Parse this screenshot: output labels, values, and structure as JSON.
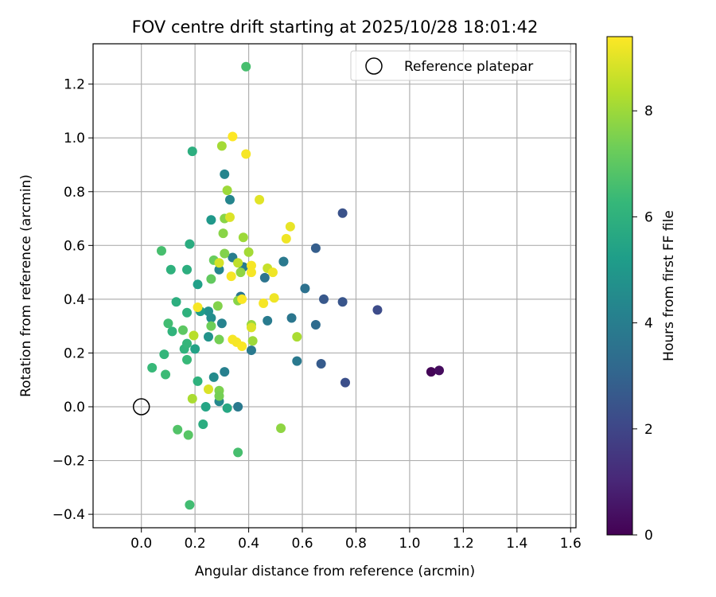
{
  "chart_data": {
    "type": "scatter",
    "title": "FOV centre drift starting at 2025/10/28 18:01:42",
    "xlabel": "Angular distance from reference (arcmin)",
    "ylabel": "Rotation from reference (arcmin)",
    "xlim": [
      -0.18,
      1.62
    ],
    "ylim": [
      -0.45,
      1.35
    ],
    "xticks": [
      0.0,
      0.2,
      0.4,
      0.6,
      0.8,
      1.0,
      1.2,
      1.4,
      1.6
    ],
    "yticks": [
      -0.4,
      -0.2,
      0.0,
      0.2,
      0.4,
      0.6,
      0.8,
      1.0,
      1.2
    ],
    "xtick_labels": [
      "0.0",
      "0.2",
      "0.4",
      "0.6",
      "0.8",
      "1.0",
      "1.2",
      "1.4",
      "1.6"
    ],
    "ytick_labels": [
      "−0.4",
      "−0.2",
      "0.0",
      "0.2",
      "0.4",
      "0.6",
      "0.8",
      "1.0",
      "1.2"
    ],
    "grid": true,
    "legend": {
      "position": "top-right",
      "entries": [
        "Reference platepar"
      ]
    },
    "reference_point": {
      "x": 0.0,
      "y": 0.0,
      "label": "Reference platepar"
    },
    "colorbar": {
      "label": "Hours from first FF file",
      "range": [
        0,
        9.4
      ],
      "ticks": [
        0,
        2,
        4,
        6,
        8
      ],
      "tick_labels": [
        "0",
        "2",
        "4",
        "6",
        "8"
      ],
      "colormap": "viridis"
    },
    "points": [
      {
        "x": 1.08,
        "y": 0.13,
        "hours": 0.1
      },
      {
        "x": 1.11,
        "y": 0.135,
        "hours": 0.3
      },
      {
        "x": 0.88,
        "y": 0.36,
        "hours": 2.2
      },
      {
        "x": 0.76,
        "y": 0.09,
        "hours": 2.3
      },
      {
        "x": 0.75,
        "y": 0.72,
        "hours": 2.4
      },
      {
        "x": 0.75,
        "y": 0.39,
        "hours": 2.5
      },
      {
        "x": 0.68,
        "y": 0.4,
        "hours": 2.6
      },
      {
        "x": 0.67,
        "y": 0.16,
        "hours": 2.7
      },
      {
        "x": 0.65,
        "y": 0.59,
        "hours": 2.8
      },
      {
        "x": 0.65,
        "y": 0.305,
        "hours": 3.3
      },
      {
        "x": 0.61,
        "y": 0.44,
        "hours": 3.5
      },
      {
        "x": 0.58,
        "y": 0.17,
        "hours": 3.8
      },
      {
        "x": 0.56,
        "y": 0.33,
        "hours": 3.7
      },
      {
        "x": 0.53,
        "y": 0.54,
        "hours": 3.6
      },
      {
        "x": 0.53,
        "y": 0.54,
        "hours": 3.8
      },
      {
        "x": 0.46,
        "y": 0.48,
        "hours": 3.6
      },
      {
        "x": 0.47,
        "y": 0.32,
        "hours": 3.9
      },
      {
        "x": 0.41,
        "y": 0.21,
        "hours": 3.8
      },
      {
        "x": 0.38,
        "y": 0.52,
        "hours": 3.9
      },
      {
        "x": 0.37,
        "y": 0.41,
        "hours": 3.7
      },
      {
        "x": 0.36,
        "y": 0.0,
        "hours": 3.8
      },
      {
        "x": 0.34,
        "y": 0.555,
        "hours": 4.0
      },
      {
        "x": 0.33,
        "y": 0.77,
        "hours": 4.3
      },
      {
        "x": 0.31,
        "y": 0.865,
        "hours": 4.3
      },
      {
        "x": 0.31,
        "y": 0.13,
        "hours": 4.1
      },
      {
        "x": 0.3,
        "y": 0.31,
        "hours": 4.2
      },
      {
        "x": 0.29,
        "y": 0.51,
        "hours": 4.3
      },
      {
        "x": 0.29,
        "y": 0.02,
        "hours": 4.4
      },
      {
        "x": 0.27,
        "y": 0.11,
        "hours": 4.5
      },
      {
        "x": 0.26,
        "y": 0.33,
        "hours": 4.6
      },
      {
        "x": 0.25,
        "y": 0.355,
        "hours": 4.7
      },
      {
        "x": 0.25,
        "y": 0.26,
        "hours": 4.8
      },
      {
        "x": 0.26,
        "y": 0.695,
        "hours": 5.0
      },
      {
        "x": 0.22,
        "y": 0.355,
        "hours": 5.2
      },
      {
        "x": 0.21,
        "y": 0.455,
        "hours": 5.3
      },
      {
        "x": 0.2,
        "y": 0.215,
        "hours": 5.4
      },
      {
        "x": 0.24,
        "y": 0.0,
        "hours": 5.5
      },
      {
        "x": 0.32,
        "y": -0.005,
        "hours": 5.6
      },
      {
        "x": 0.23,
        "y": -0.065,
        "hours": 5.8
      },
      {
        "x": 0.19,
        "y": 0.95,
        "hours": 5.9
      },
      {
        "x": 0.18,
        "y": 0.605,
        "hours": 5.8
      },
      {
        "x": 0.17,
        "y": 0.51,
        "hours": 5.9
      },
      {
        "x": 0.17,
        "y": 0.35,
        "hours": 6.0
      },
      {
        "x": 0.13,
        "y": 0.39,
        "hours": 5.9
      },
      {
        "x": 0.11,
        "y": 0.51,
        "hours": 6.0
      },
      {
        "x": 0.115,
        "y": 0.28,
        "hours": 6.1
      },
      {
        "x": 0.16,
        "y": 0.215,
        "hours": 6.1
      },
      {
        "x": 0.17,
        "y": 0.235,
        "hours": 6.2
      },
      {
        "x": 0.21,
        "y": 0.095,
        "hours": 6.0
      },
      {
        "x": 0.17,
        "y": 0.175,
        "hours": 6.3
      },
      {
        "x": 0.085,
        "y": 0.195,
        "hours": 6.2
      },
      {
        "x": 0.04,
        "y": 0.145,
        "hours": 6.3
      },
      {
        "x": 0.09,
        "y": 0.12,
        "hours": 6.4
      },
      {
        "x": 0.1,
        "y": 0.31,
        "hours": 6.5
      },
      {
        "x": 0.075,
        "y": 0.58,
        "hours": 6.6
      },
      {
        "x": 0.39,
        "y": 1.265,
        "hours": 6.6
      },
      {
        "x": 0.36,
        "y": -0.17,
        "hours": 6.6
      },
      {
        "x": 0.18,
        "y": -0.365,
        "hours": 6.5
      },
      {
        "x": 0.135,
        "y": -0.085,
        "hours": 6.8
      },
      {
        "x": 0.175,
        "y": -0.105,
        "hours": 6.9
      },
      {
        "x": 0.155,
        "y": 0.285,
        "hours": 7.0
      },
      {
        "x": 0.26,
        "y": 0.475,
        "hours": 7.1
      },
      {
        "x": 0.27,
        "y": 0.545,
        "hours": 7.2
      },
      {
        "x": 0.26,
        "y": 0.3,
        "hours": 7.3
      },
      {
        "x": 0.29,
        "y": 0.25,
        "hours": 7.4
      },
      {
        "x": 0.29,
        "y": 0.06,
        "hours": 7.5
      },
      {
        "x": 0.29,
        "y": 0.04,
        "hours": 7.4
      },
      {
        "x": 0.285,
        "y": 0.375,
        "hours": 7.6
      },
      {
        "x": 0.31,
        "y": 0.57,
        "hours": 7.6
      },
      {
        "x": 0.305,
        "y": 0.645,
        "hours": 7.7
      },
      {
        "x": 0.31,
        "y": 0.7,
        "hours": 7.7
      },
      {
        "x": 0.36,
        "y": 0.395,
        "hours": 7.7
      },
      {
        "x": 0.37,
        "y": 0.5,
        "hours": 7.8
      },
      {
        "x": 0.38,
        "y": 0.63,
        "hours": 8.0
      },
      {
        "x": 0.4,
        "y": 0.575,
        "hours": 8.1
      },
      {
        "x": 0.41,
        "y": 0.305,
        "hours": 7.9
      },
      {
        "x": 0.415,
        "y": 0.245,
        "hours": 8.0
      },
      {
        "x": 0.32,
        "y": 0.805,
        "hours": 8.0
      },
      {
        "x": 0.3,
        "y": 0.97,
        "hours": 8.1
      },
      {
        "x": 0.19,
        "y": 0.03,
        "hours": 8.2
      },
      {
        "x": 0.195,
        "y": 0.265,
        "hours": 8.4
      },
      {
        "x": 0.58,
        "y": 0.26,
        "hours": 8.2
      },
      {
        "x": 0.52,
        "y": -0.08,
        "hours": 7.8
      },
      {
        "x": 0.47,
        "y": 0.515,
        "hours": 8.6
      },
      {
        "x": 0.36,
        "y": 0.535,
        "hours": 8.5
      },
      {
        "x": 0.33,
        "y": 0.705,
        "hours": 8.9
      },
      {
        "x": 0.25,
        "y": 0.065,
        "hours": 8.9
      },
      {
        "x": 0.29,
        "y": 0.535,
        "hours": 8.8
      },
      {
        "x": 0.41,
        "y": 0.295,
        "hours": 8.9
      },
      {
        "x": 0.44,
        "y": 0.77,
        "hours": 9.0
      },
      {
        "x": 0.555,
        "y": 0.67,
        "hours": 9.1
      },
      {
        "x": 0.54,
        "y": 0.625,
        "hours": 9.2
      },
      {
        "x": 0.49,
        "y": 0.5,
        "hours": 9.2
      },
      {
        "x": 0.495,
        "y": 0.405,
        "hours": 9.2
      },
      {
        "x": 0.455,
        "y": 0.385,
        "hours": 9.3
      },
      {
        "x": 0.41,
        "y": 0.525,
        "hours": 9.3
      },
      {
        "x": 0.41,
        "y": 0.5,
        "hours": 9.3
      },
      {
        "x": 0.335,
        "y": 0.485,
        "hours": 9.3
      },
      {
        "x": 0.34,
        "y": 0.25,
        "hours": 9.3
      },
      {
        "x": 0.355,
        "y": 0.24,
        "hours": 9.3
      },
      {
        "x": 0.375,
        "y": 0.225,
        "hours": 9.35
      },
      {
        "x": 0.375,
        "y": 0.4,
        "hours": 9.35
      },
      {
        "x": 0.21,
        "y": 0.37,
        "hours": 9.3
      },
      {
        "x": 0.39,
        "y": 0.94,
        "hours": 9.3
      },
      {
        "x": 0.34,
        "y": 1.005,
        "hours": 9.4
      }
    ]
  }
}
